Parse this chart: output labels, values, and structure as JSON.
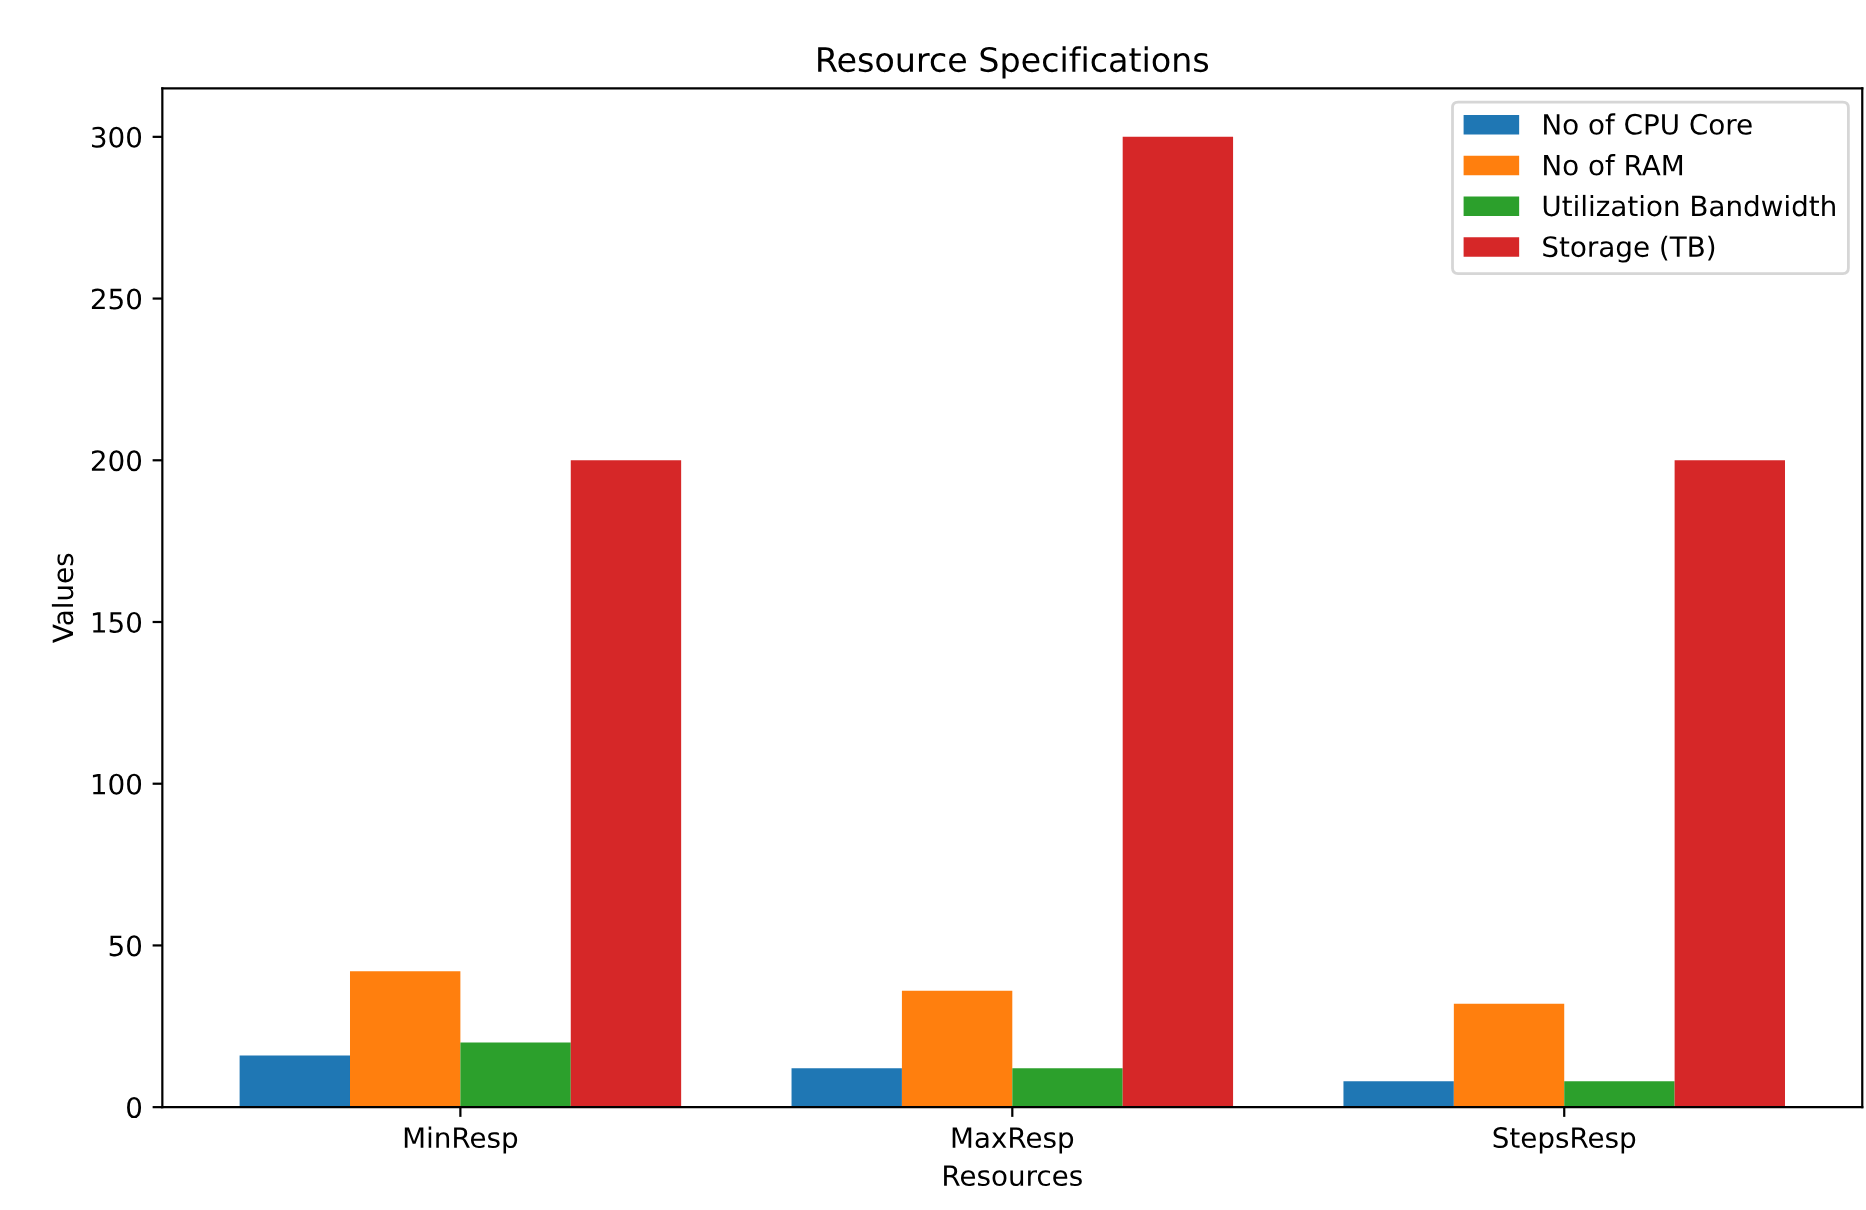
{
  "chart_data": {
    "type": "bar",
    "title": "Resource Specifications",
    "xlabel": "Resources",
    "ylabel": "Values",
    "categories": [
      "MinResp",
      "MaxResp",
      "StepsResp"
    ],
    "series": [
      {
        "name": "No of CPU Core",
        "color": "#1f77b4",
        "values": [
          16,
          12,
          8
        ]
      },
      {
        "name": "No of RAM",
        "color": "#ff7f0e",
        "values": [
          42,
          36,
          32
        ]
      },
      {
        "name": "Utilization Bandwidth",
        "color": "#2ca02c",
        "values": [
          20,
          12,
          8
        ]
      },
      {
        "name": "Storage (TB)",
        "color": "#d62728",
        "values": [
          200,
          300,
          200
        ]
      }
    ],
    "ylim": [
      0,
      315
    ],
    "yticks": [
      0,
      50,
      100,
      150,
      200,
      250,
      300
    ],
    "legend": "top right",
    "grid": false
  }
}
